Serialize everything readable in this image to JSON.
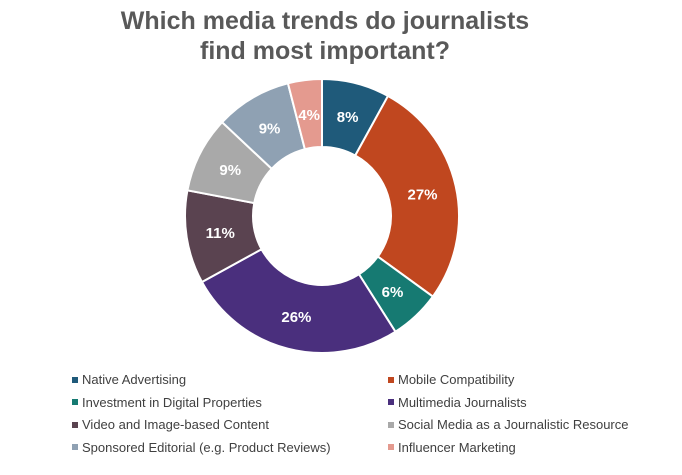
{
  "chart_data": {
    "type": "pie",
    "title_lines": [
      "Which media trends do journalists",
      "find most important?"
    ],
    "categories": [
      "Native Advertising",
      "Mobile Compatibility",
      "Investment in Digital Properties",
      "Multimedia Journalists",
      "Video and Image-based Content",
      "Social Media as a Journalistic Resource",
      "Sponsored Editorial (e.g. Product Reviews)",
      "Influencer Marketing"
    ],
    "values": [
      8,
      27,
      6,
      26,
      11,
      9,
      9,
      4
    ],
    "data_labels": [
      "8%",
      "27%",
      "6%",
      "26%",
      "11%",
      "9%",
      "9%",
      "4%"
    ],
    "colors": [
      "#1f5a7a",
      "#c0471f",
      "#167a72",
      "#4a2f7d",
      "#5a4350",
      "#a9a9a9",
      "#8fa1b3",
      "#e49a8f"
    ],
    "legend_position": "bottom",
    "donut": true
  }
}
